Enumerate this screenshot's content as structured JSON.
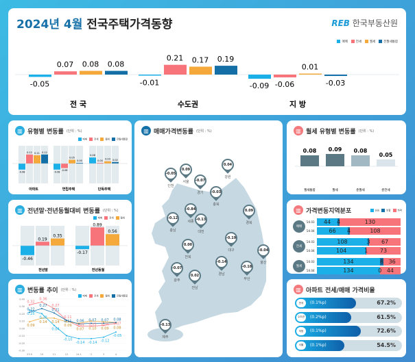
{
  "header": {
    "title_prefix": "2024년 4월",
    "title_main": "전국주택가격동향",
    "logo_mark": "REB",
    "logo_text": "한국부동산원"
  },
  "colors": {
    "sale": "#1bb0e8",
    "jeonse": "#f7747a",
    "wolse": "#f5a93a",
    "combined": "#136fa6"
  },
  "legend4": [
    "매매",
    "전세",
    "월세",
    "전월세통합"
  ],
  "chart_data": [
    {
      "type": "bar",
      "categories": [
        "전 국",
        "수도권",
        "지 방"
      ],
      "series": [
        {
          "name": "매매",
          "values": [
            -0.05,
            -0.01,
            -0.09
          ]
        },
        {
          "name": "전세",
          "values": [
            0.07,
            0.21,
            -0.06
          ]
        },
        {
          "name": "월세",
          "values": [
            0.08,
            0.17,
            0.01
          ]
        },
        {
          "name": "전월세통합",
          "values": [
            0.08,
            0.19,
            -0.03
          ]
        }
      ]
    },
    {
      "type": "bar",
      "title": "유형별 변동률",
      "unit": "(단위 : %)",
      "categories": [
        "아파트",
        "연립주택",
        "단독주택"
      ],
      "series": [
        {
          "name": "매매",
          "values": [
            -0.08,
            -0.08,
            0.08
          ]
        },
        {
          "name": "전세",
          "values": [
            0.12,
            -0.06,
            0.0
          ]
        },
        {
          "name": "월세",
          "values": [
            0.11,
            0.05,
            0.03
          ]
        },
        {
          "name": "전월세통합",
          "values": [
            0.12,
            0.0,
            0.02
          ]
        }
      ]
    },
    {
      "type": "bar",
      "title": "전년말·전년동월대비 변동률",
      "unit": "(단위 : %)",
      "categories": [
        "전년말",
        "전년동월"
      ],
      "series": [
        {
          "name": "매매",
          "values": [
            -0.46,
            -0.17
          ]
        },
        {
          "name": "전세",
          "values": [
            0.19,
            0.89
          ]
        },
        {
          "name": "월세",
          "values": [
            0.35,
            0.56
          ]
        }
      ]
    },
    {
      "type": "line",
      "title": "변동률 추이",
      "unit": "(단위 : %)",
      "x": [
        "23.9",
        "10",
        "11",
        "12",
        "24.1",
        "2",
        "3",
        "4"
      ],
      "ylim": [
        -0.3,
        0.4
      ],
      "yticks": [
        "0.40",
        "0.30",
        "0.20",
        "0.10",
        "0.00",
        "-0.10",
        "-0.20",
        "-0.30"
      ],
      "series": [
        {
          "name": "매매",
          "values": [
            0.25,
            0.2,
            0.04,
            -0.1,
            -0.14,
            -0.14,
            -0.12,
            -0.05
          ]
        },
        {
          "name": "전세",
          "values": [
            0.32,
            0.36,
            0.27,
            0.11,
            0.03,
            0.03,
            0.04,
            0.07
          ]
        },
        {
          "name": "월세",
          "values": [
            0.09,
            0.14,
            0.14,
            0.09,
            0.07,
            0.1,
            0.09,
            0.08
          ]
        },
        {
          "name": "전월세통합",
          "values": [
            0.22,
            0.27,
            0.21,
            0.11,
            0.06,
            0.07,
            0.07,
            0.08
          ]
        }
      ]
    },
    {
      "type": "bar",
      "title": "월세 유형별 변동률",
      "unit": "(단위 : %)",
      "categories": [
        "월세통합",
        "월세",
        "준월세",
        "준전세"
      ],
      "values": [
        0.08,
        0.09,
        0.08,
        0.05
      ],
      "colors": [
        "#5b7984",
        "#5b7984",
        "#a2b9c4",
        "#d9e5eb"
      ]
    },
    {
      "type": "bar",
      "title": "가격변동지역분포",
      "legend": [
        "상승",
        "보합",
        "하락"
      ],
      "groups": [
        {
          "name": "매매",
          "rows": [
            {
              "period": "'24.03",
              "values": [
                44,
                4,
                130
              ]
            },
            {
              "period": "'24.04",
              "values": [
                66,
                4,
                108
              ]
            }
          ]
        },
        {
          "name": "전세",
          "rows": [
            {
              "period": "'24.03",
              "values": [
                108,
                3,
                67
              ]
            },
            {
              "period": "'24.04",
              "values": [
                104,
                1,
                73
              ]
            }
          ]
        },
        {
          "name": "월세",
          "rows": [
            {
              "period": "'24.03",
              "values": [
                134,
                8,
                36
              ]
            },
            {
              "period": "'24.04",
              "values": [
                134,
                0,
                44
              ]
            }
          ]
        }
      ]
    },
    {
      "type": "bar",
      "title": "아파트 전세/매매 가격비율",
      "rows": [
        {
          "region": "전국",
          "change": "(0.1%p)",
          "value": 67.2,
          "label": "67.2%"
        },
        {
          "region": "수도권",
          "change": "(0.2%p)",
          "value": 61.5,
          "label": "61.5%"
        },
        {
          "region": "지방",
          "change": "(0.1%p)",
          "value": 72.6,
          "label": "72.6%"
        },
        {
          "region": "서울",
          "change": "(0.1%p)",
          "value": 54.5,
          "label": "54.5%"
        }
      ]
    }
  ],
  "map": {
    "title": "매매가격변동률",
    "unit": "(단위 : %)",
    "regions": [
      {
        "name": "인천",
        "value": "-0.05"
      },
      {
        "name": "서울",
        "value": "0.09"
      },
      {
        "name": "경기",
        "value": "-0.07"
      },
      {
        "name": "강원",
        "value": "0.04"
      },
      {
        "name": "충북",
        "value": "-0.03"
      },
      {
        "name": "세종",
        "value": "-0.84"
      },
      {
        "name": "충남",
        "value": "-0.12"
      },
      {
        "name": "대전",
        "value": "-0.13"
      },
      {
        "name": "경북",
        "value": "0.09"
      },
      {
        "name": "대구",
        "value": "-0.19"
      },
      {
        "name": "전북",
        "value": "0.00"
      },
      {
        "name": "울산",
        "value": "-0.04"
      },
      {
        "name": "경남",
        "value": "-0.14"
      },
      {
        "name": "부산",
        "value": "-0.18"
      },
      {
        "name": "광주",
        "value": "-0.07"
      },
      {
        "name": "전남",
        "value": "0.02"
      },
      {
        "name": "제주",
        "value": "-0.13"
      }
    ]
  }
}
